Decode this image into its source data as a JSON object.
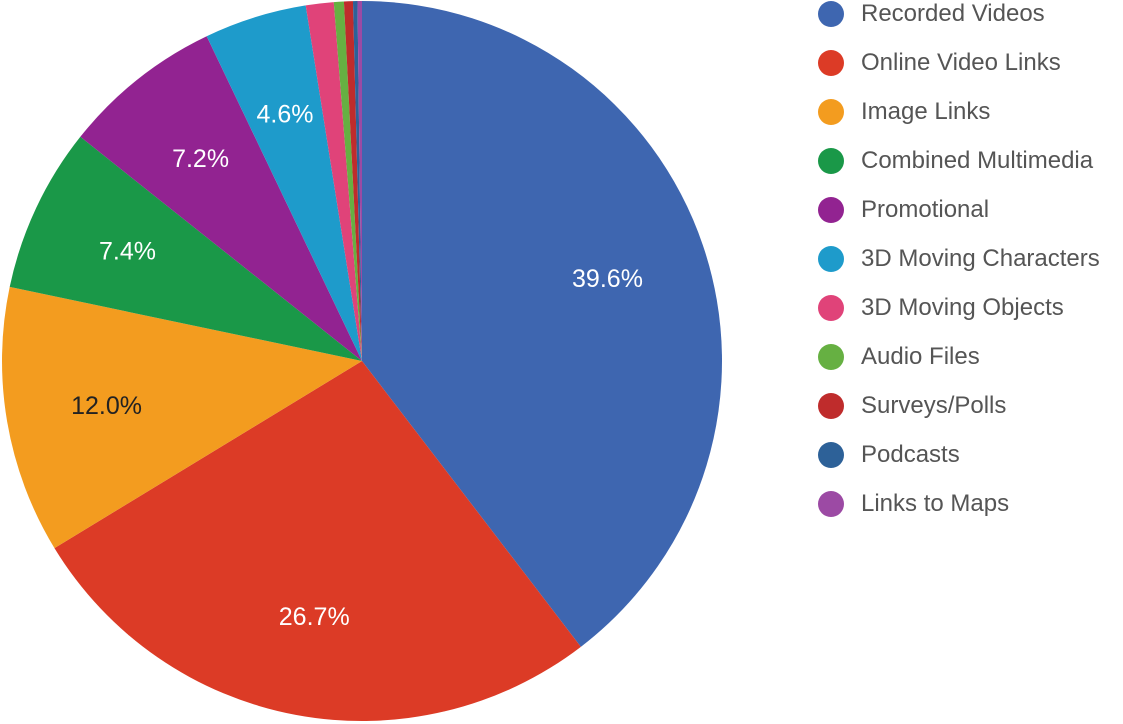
{
  "chart_data": {
    "type": "pie",
    "title": "",
    "legend_position": "right",
    "slices": [
      {
        "label": "Recorded Videos",
        "value": 39.6,
        "color": "#3e66b0",
        "data_label": "39.6%",
        "label_color": "#ffffff"
      },
      {
        "label": "Online Video Links",
        "value": 26.7,
        "color": "#dc3b26",
        "data_label": "26.7%",
        "label_color": "#ffffff"
      },
      {
        "label": "Image Links",
        "value": 12.0,
        "color": "#f39c1f",
        "data_label": "12.0%",
        "label_color": "#222222"
      },
      {
        "label": "Combined Multimedia",
        "value": 7.4,
        "color": "#1a9848",
        "data_label": "7.4%",
        "label_color": "#ffffff"
      },
      {
        "label": "Promotional",
        "value": 7.2,
        "color": "#922391",
        "data_label": "7.2%",
        "label_color": "#ffffff"
      },
      {
        "label": "3D Moving Characters",
        "value": 4.6,
        "color": "#1e9bcb",
        "data_label": "4.6%",
        "label_color": "#ffffff"
      },
      {
        "label": "3D Moving Objects",
        "value": 1.25,
        "color": "#e04379",
        "data_label": null
      },
      {
        "label": "Audio Files",
        "value": 0.45,
        "color": "#66b042",
        "data_label": null
      },
      {
        "label": "Surveys/Polls",
        "value": 0.4,
        "color": "#bf2c2c",
        "data_label": null
      },
      {
        "label": "Podcasts",
        "value": 0.2,
        "color": "#2d6198",
        "data_label": null
      },
      {
        "label": "Links to Maps",
        "value": 0.2,
        "color": "#9c4aa4",
        "data_label": null
      }
    ]
  }
}
